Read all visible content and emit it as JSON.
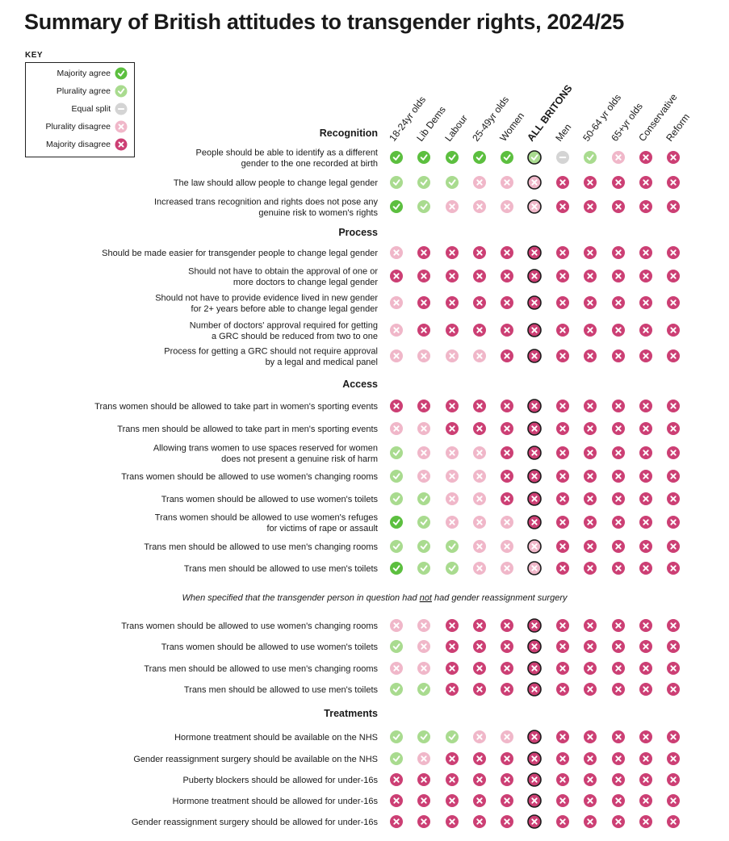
{
  "title": "Summary of British attitudes to transgender rights, 2024/25",
  "key": {
    "label": "KEY",
    "items": [
      {
        "code": "MA",
        "label": "Majority agree"
      },
      {
        "code": "PA",
        "label": "Plurality agree"
      },
      {
        "code": "ES",
        "label": "Equal split"
      },
      {
        "code": "PD",
        "label": "Plurality disagree"
      },
      {
        "code": "MD",
        "label": "Majority disagree"
      }
    ]
  },
  "colors": {
    "MA": "#5cbf3f",
    "PA": "#a9db8f",
    "ES": "#d4d4d4",
    "PD": "#f0b7c9",
    "MD": "#cc3f74",
    "highlight_border": "#1a1a1a"
  },
  "chart_data": {
    "type": "table",
    "title": "Summary of British attitudes to transgender rights, 2024/25",
    "legend": {
      "MA": "Majority agree",
      "PA": "Plurality agree",
      "ES": "Equal split",
      "PD": "Plurality disagree",
      "MD": "Majority disagree"
    },
    "columns": [
      "18-24yr olds",
      "Lib Dems",
      "Labour",
      "25-49yr olds",
      "Women",
      "ALL BRITONS",
      "Men",
      "50-64 yr olds",
      "65+yr olds",
      "Conservative",
      "Reform"
    ],
    "highlight_column": 5,
    "note": "When specified that the transgender person in question had not had gender reassignment surgery",
    "note_parts": [
      "When specified that the transgender person in question had ",
      "not",
      " had gender reassignment surgery"
    ],
    "sections": [
      {
        "name": "Recognition",
        "rows": [
          {
            "label": [
              "People should be able to identify as a different",
              "gender to the one recorded at birth"
            ],
            "values": [
              "MA",
              "MA",
              "MA",
              "MA",
              "MA",
              "PA",
              "ES",
              "PA",
              "PD",
              "MD",
              "MD"
            ]
          },
          {
            "label": [
              "The law should allow people to change legal gender"
            ],
            "values": [
              "PA",
              "PA",
              "PA",
              "PD",
              "PD",
              "PD",
              "MD",
              "MD",
              "MD",
              "MD",
              "MD"
            ]
          },
          {
            "label": [
              "Increased trans recognition and rights does not pose any",
              "genuine risk to women's rights"
            ],
            "values": [
              "MA",
              "PA",
              "PD",
              "PD",
              "PD",
              "PD",
              "MD",
              "MD",
              "MD",
              "MD",
              "MD"
            ]
          }
        ]
      },
      {
        "name": "Process",
        "rows": [
          {
            "label": [
              "Should be made easier for transgender people to change legal gender"
            ],
            "values": [
              "PD",
              "MD",
              "MD",
              "MD",
              "MD",
              "MD",
              "MD",
              "MD",
              "MD",
              "MD",
              "MD"
            ]
          },
          {
            "label": [
              "Should not have to obtain the approval of one or",
              "more doctors to change legal gender"
            ],
            "values": [
              "MD",
              "MD",
              "MD",
              "MD",
              "MD",
              "MD",
              "MD",
              "MD",
              "MD",
              "MD",
              "MD"
            ]
          },
          {
            "label": [
              "Should not have to provide evidence lived in new gender",
              "for 2+ years before able to change legal gender"
            ],
            "values": [
              "PD",
              "MD",
              "MD",
              "MD",
              "MD",
              "MD",
              "MD",
              "MD",
              "MD",
              "MD",
              "MD"
            ]
          },
          {
            "label": [
              "Number of doctors' approval required for getting",
              "a GRC should be reduced from two to one"
            ],
            "values": [
              "PD",
              "MD",
              "MD",
              "MD",
              "MD",
              "MD",
              "MD",
              "MD",
              "MD",
              "MD",
              "MD"
            ]
          },
          {
            "label": [
              "Process for getting a GRC should not require approval",
              "by a legal and medical panel"
            ],
            "values": [
              "PD",
              "PD",
              "PD",
              "PD",
              "MD",
              "MD",
              "MD",
              "MD",
              "MD",
              "MD",
              "MD"
            ]
          }
        ]
      },
      {
        "name": "Access",
        "rows": [
          {
            "label": [
              "Trans women should be allowed to take part in women's sporting events"
            ],
            "values": [
              "MD",
              "MD",
              "MD",
              "MD",
              "MD",
              "MD",
              "MD",
              "MD",
              "MD",
              "MD",
              "MD"
            ]
          },
          {
            "label": [
              "Trans men should be allowed to take part in men's sporting events"
            ],
            "values": [
              "PD",
              "PD",
              "MD",
              "MD",
              "MD",
              "MD",
              "MD",
              "MD",
              "MD",
              "MD",
              "MD"
            ]
          },
          {
            "label": [
              "Allowing trans women to use spaces reserved for women",
              "does not present a genuine risk of harm"
            ],
            "values": [
              "PA",
              "PD",
              "PD",
              "PD",
              "MD",
              "MD",
              "MD",
              "MD",
              "MD",
              "MD",
              "MD"
            ]
          },
          {
            "label": [
              "Trans women should be allowed to use women's changing rooms"
            ],
            "values": [
              "PA",
              "PD",
              "PD",
              "PD",
              "MD",
              "MD",
              "MD",
              "MD",
              "MD",
              "MD",
              "MD"
            ]
          },
          {
            "label": [
              "Trans women should be allowed to use women's toilets"
            ],
            "values": [
              "PA",
              "PA",
              "PD",
              "PD",
              "MD",
              "MD",
              "MD",
              "MD",
              "MD",
              "MD",
              "MD"
            ]
          },
          {
            "label": [
              "Trans women should be allowed to use women's refuges",
              "for victims of rape or assault"
            ],
            "values": [
              "MA",
              "PA",
              "PD",
              "PD",
              "PD",
              "MD",
              "MD",
              "MD",
              "MD",
              "MD",
              "MD"
            ]
          },
          {
            "label": [
              "Trans men should be allowed to use men's changing rooms"
            ],
            "values": [
              "PA",
              "PA",
              "PA",
              "PD",
              "PD",
              "PD",
              "MD",
              "MD",
              "MD",
              "MD",
              "MD"
            ]
          },
          {
            "label": [
              "Trans men should be allowed to use men's toilets"
            ],
            "values": [
              "MA",
              "PA",
              "PA",
              "PD",
              "PD",
              "PD",
              "MD",
              "MD",
              "MD",
              "MD",
              "MD"
            ]
          }
        ]
      },
      {
        "name": "",
        "rows": [
          {
            "label": [
              "Trans women should be allowed to use women's changing rooms"
            ],
            "values": [
              "PD",
              "PD",
              "MD",
              "MD",
              "MD",
              "MD",
              "MD",
              "MD",
              "MD",
              "MD",
              "MD"
            ]
          },
          {
            "label": [
              "Trans women should be allowed to use women's toilets"
            ],
            "values": [
              "PA",
              "PD",
              "MD",
              "MD",
              "MD",
              "MD",
              "MD",
              "MD",
              "MD",
              "MD",
              "MD"
            ]
          },
          {
            "label": [
              "Trans men should be allowed to use men's changing rooms"
            ],
            "values": [
              "PD",
              "PD",
              "MD",
              "MD",
              "MD",
              "MD",
              "MD",
              "MD",
              "MD",
              "MD",
              "MD"
            ]
          },
          {
            "label": [
              "Trans men should be allowed to use men's toilets"
            ],
            "values": [
              "PA",
              "PA",
              "MD",
              "MD",
              "MD",
              "MD",
              "MD",
              "MD",
              "MD",
              "MD",
              "MD"
            ]
          }
        ]
      },
      {
        "name": "Treatments",
        "rows": [
          {
            "label": [
              "Hormone treatment should be available on the NHS"
            ],
            "values": [
              "PA",
              "PA",
              "PA",
              "PD",
              "PD",
              "MD",
              "MD",
              "MD",
              "MD",
              "MD",
              "MD"
            ]
          },
          {
            "label": [
              "Gender reassignment surgery should be available on the NHS"
            ],
            "values": [
              "PA",
              "PD",
              "MD",
              "MD",
              "MD",
              "MD",
              "MD",
              "MD",
              "MD",
              "MD",
              "MD"
            ]
          },
          {
            "label": [
              "Puberty blockers should be allowed for under-16s"
            ],
            "values": [
              "MD",
              "MD",
              "MD",
              "MD",
              "MD",
              "MD",
              "MD",
              "MD",
              "MD",
              "MD",
              "MD"
            ]
          },
          {
            "label": [
              "Hormone treatment should be allowed for under-16s"
            ],
            "values": [
              "MD",
              "MD",
              "MD",
              "MD",
              "MD",
              "MD",
              "MD",
              "MD",
              "MD",
              "MD",
              "MD"
            ]
          },
          {
            "label": [
              "Gender reassignment surgery should be allowed for under-16s"
            ],
            "values": [
              "MD",
              "MD",
              "MD",
              "MD",
              "MD",
              "MD",
              "MD",
              "MD",
              "MD",
              "MD",
              "MD"
            ]
          }
        ]
      }
    ]
  }
}
